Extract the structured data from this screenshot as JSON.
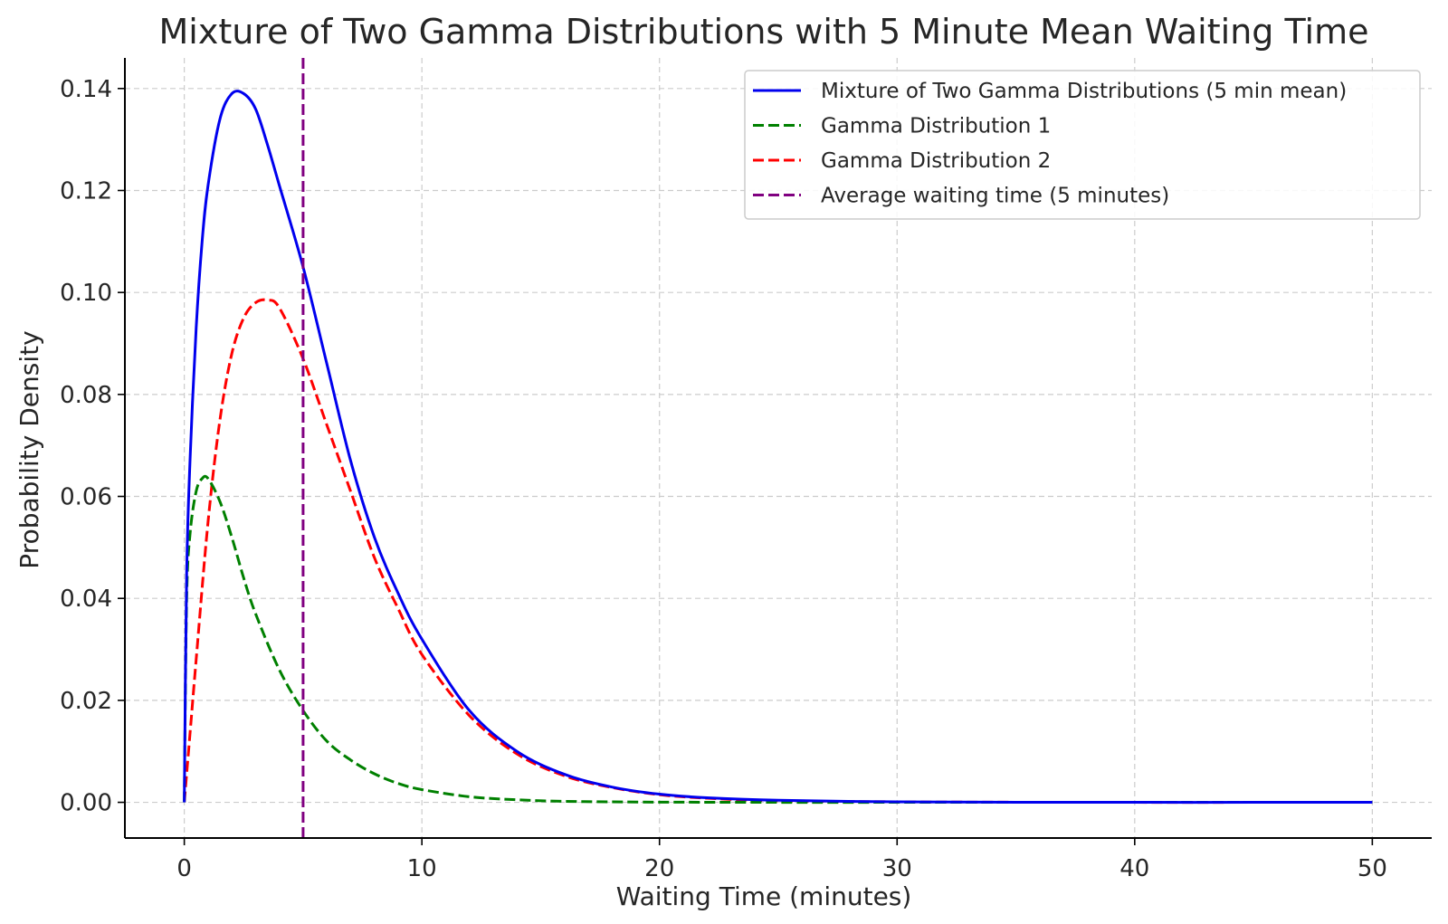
{
  "chart_data": {
    "type": "line",
    "title": "Mixture of Two Gamma Distributions with 5 Minute Mean Waiting Time",
    "xlabel": "Waiting Time (minutes)",
    "ylabel": "Probability Density",
    "xlim": [
      -2.5,
      52.5
    ],
    "ylim": [
      -0.007,
      0.146
    ],
    "xticks": [
      "0",
      "10",
      "20",
      "30",
      "40",
      "50"
    ],
    "xtick_values": [
      0,
      10,
      20,
      30,
      40,
      50
    ],
    "yticks": [
      "0.00",
      "0.02",
      "0.04",
      "0.06",
      "0.08",
      "0.10",
      "0.12",
      "0.14"
    ],
    "ytick_values": [
      0,
      0.02,
      0.04,
      0.06,
      0.08,
      0.1,
      0.12,
      0.14
    ],
    "grid": true,
    "legend_position": "top-right",
    "series": [
      {
        "name": "Mixture of Two Gamma Distributions (5 min mean)",
        "color": "#0000ee",
        "style": "solid",
        "x": [
          0,
          0.1,
          0.25,
          0.5,
          0.75,
          1,
          1.5,
          2,
          2.5,
          3,
          3.5,
          4,
          5,
          6,
          7,
          8,
          9,
          10,
          12,
          14,
          16,
          18,
          20,
          22,
          25,
          30,
          35,
          40,
          45,
          50
        ],
        "y": [
          0,
          0.045,
          0.068,
          0.093,
          0.11,
          0.121,
          0.134,
          0.139,
          0.139,
          0.136,
          0.129,
          0.121,
          0.105,
          0.086,
          0.067,
          0.052,
          0.041,
          0.032,
          0.018,
          0.01,
          0.0055,
          0.003,
          0.0016,
          0.0009,
          0.0004,
          0.0001,
          2e-05,
          0,
          0,
          0
        ]
      },
      {
        "name": "Gamma Distribution 1",
        "color": "#008000",
        "style": "dashed",
        "x": [
          0,
          0.1,
          0.25,
          0.5,
          0.75,
          1,
          1.5,
          2,
          2.5,
          3,
          4,
          5,
          6,
          7,
          8,
          9,
          10,
          12,
          14,
          16,
          18,
          20,
          25,
          30,
          40,
          50
        ],
        "y": [
          0,
          0.04,
          0.053,
          0.061,
          0.0635,
          0.0635,
          0.059,
          0.052,
          0.044,
          0.037,
          0.026,
          0.018,
          0.012,
          0.0083,
          0.0056,
          0.0037,
          0.0025,
          0.0011,
          0.0005,
          0.0002,
          0.0001,
          4e-05,
          0,
          0,
          0,
          0
        ]
      },
      {
        "name": "Gamma Distribution 2",
        "color": "#ff0000",
        "style": "dashed",
        "x": [
          0,
          0.25,
          0.5,
          1,
          1.5,
          2,
          2.5,
          3,
          3.5,
          4,
          5,
          6,
          7,
          8,
          9,
          10,
          12,
          14,
          16,
          18,
          20,
          22,
          25,
          30,
          35,
          40,
          45,
          50
        ],
        "y": [
          0,
          0.014,
          0.028,
          0.055,
          0.075,
          0.088,
          0.095,
          0.098,
          0.0985,
          0.097,
          0.087,
          0.074,
          0.061,
          0.048,
          0.038,
          0.029,
          0.017,
          0.0095,
          0.0052,
          0.0029,
          0.0015,
          0.0008,
          0.0003,
          0.0001,
          2e-05,
          0,
          0,
          0
        ]
      },
      {
        "name": "Average waiting time (5 minutes)",
        "color": "#800080",
        "style": "dashed",
        "vline_x": 5
      }
    ]
  }
}
